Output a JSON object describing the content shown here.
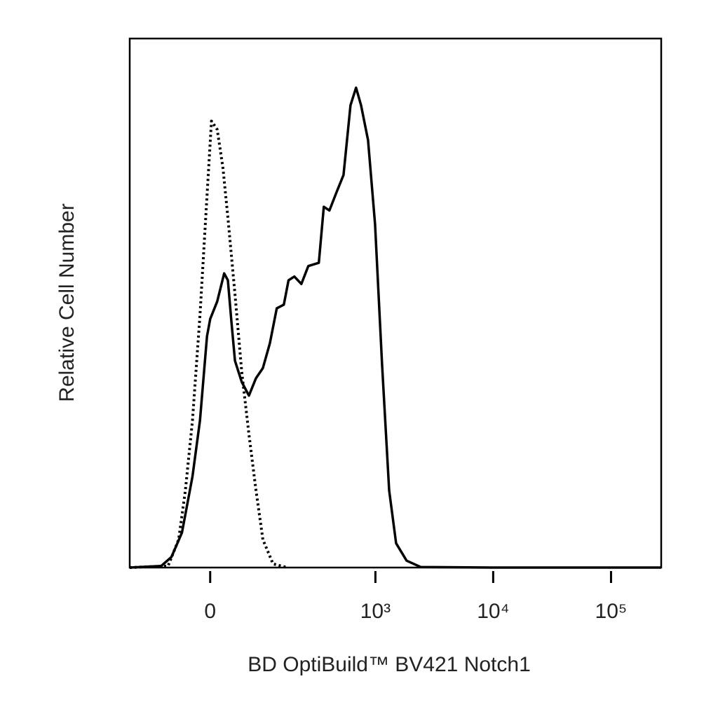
{
  "chart_data": {
    "type": "histogram-overlay",
    "xlabel": "BD OptiBuild™ BV421 Notch1",
    "ylabel": "Relative Cell Number",
    "xscale": "biexponential",
    "xlim": [
      -183,
      266500
    ],
    "xticks": [
      0,
      {
        "value": 1000,
        "label": "10³"
      },
      {
        "value": 10000,
        "label": "10⁴"
      },
      {
        "value": 100000,
        "label": "10⁵"
      }
    ],
    "ylim": [
      0,
      100
    ],
    "series": [
      {
        "color": "#000000",
        "dash": "solid",
        "x": [
          -183,
          -88,
          -66,
          -46,
          -28,
          -16,
          -5,
          0,
          11,
          22,
          28,
          34,
          40,
          52,
          66,
          81,
          97,
          115,
          135,
          158,
          175,
          198,
          229,
          264,
          327,
          361,
          404,
          464,
          534,
          613,
          684,
          754,
          865,
          993,
          1139,
          1308,
          1500,
          1843,
          2422,
          9550,
          266500
        ],
        "values": [
          0,
          0.3,
          2.0,
          6.6,
          17.2,
          27.8,
          43.7,
          47.0,
          50.3,
          55.6,
          54.3,
          46.4,
          39.1,
          35.1,
          32.5,
          35.8,
          37.7,
          42.4,
          49.0,
          49.7,
          54.3,
          55.0,
          53.6,
          57.0,
          57.6,
          68.2,
          67.5,
          70.9,
          74.2,
          87.4,
          90.7,
          87.4,
          80.8,
          64.9,
          38.4,
          14.6,
          4.6,
          1.3,
          0.1,
          0,
          0
        ]
      },
      {
        "color": "#000000",
        "dash": "dotted",
        "x": [
          -183,
          -73,
          -52,
          -40,
          -28,
          -16,
          -5,
          2,
          11,
          20,
          28,
          40,
          52,
          66,
          81,
          97,
          124,
          170
        ],
        "values": [
          0,
          0.3,
          5.3,
          14.6,
          27.8,
          47.7,
          70.2,
          84.4,
          82.8,
          75.5,
          66.2,
          51.7,
          37.1,
          25.2,
          14.6,
          5.3,
          0.7,
          0
        ]
      }
    ]
  }
}
